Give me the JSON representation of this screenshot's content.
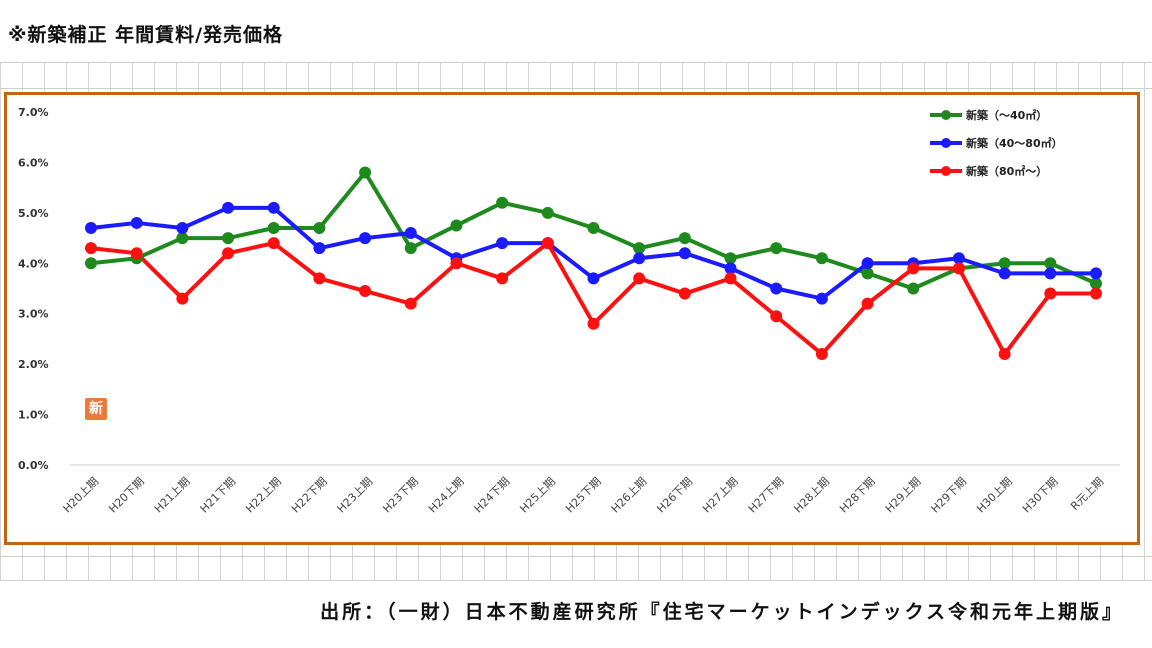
{
  "header": {
    "title": "※新築補正 年間賃料/発売価格"
  },
  "footer": {
    "source": "出所：（一財）日本不動産研究所『住宅マーケットインデックス令和元年上期版』"
  },
  "badge": {
    "text": "新"
  },
  "chart_data": {
    "type": "line",
    "categories": [
      "H20上期",
      "H20下期",
      "H21上期",
      "H21下期",
      "H22上期",
      "H22下期",
      "H23上期",
      "H23下期",
      "H24上期",
      "H24下期",
      "H25上期",
      "H25下期",
      "H26上期",
      "H26下期",
      "H27上期",
      "H27下期",
      "H28上期",
      "H28下期",
      "H29上期",
      "H29下期",
      "H30上期",
      "H30下期",
      "R元上期"
    ],
    "y_ticks": [
      "0.0%",
      "1.0%",
      "2.0%",
      "3.0%",
      "4.0%",
      "5.0%",
      "6.0%",
      "7.0%"
    ],
    "ylim": [
      0,
      7
    ],
    "grid": "horizontal-none",
    "legend_position": "top-right",
    "series": [
      {
        "name": "新築（～40㎡）",
        "color": "#1e8a1e",
        "values": [
          4.0,
          4.1,
          4.5,
          4.5,
          4.7,
          4.7,
          5.8,
          4.3,
          4.75,
          5.2,
          5.0,
          4.7,
          4.3,
          4.5,
          4.1,
          4.3,
          4.1,
          3.8,
          3.5,
          3.9,
          4.0,
          4.0,
          3.6
        ]
      },
      {
        "name": "新築（40～80㎡）",
        "color": "#1b1bff",
        "values": [
          4.7,
          4.8,
          4.7,
          5.1,
          5.1,
          4.3,
          4.5,
          4.6,
          4.1,
          4.4,
          4.4,
          3.7,
          4.1,
          4.2,
          3.9,
          3.5,
          3.3,
          4.0,
          4.0,
          4.1,
          3.8,
          3.8,
          3.8
        ]
      },
      {
        "name": "新築（80㎡～）",
        "color": "#ff1010",
        "values": [
          4.3,
          4.2,
          3.3,
          4.2,
          4.4,
          3.7,
          3.45,
          3.2,
          4.0,
          3.7,
          4.4,
          2.8,
          3.7,
          3.4,
          3.7,
          2.95,
          2.2,
          3.2,
          3.9,
          3.9,
          2.2,
          3.4,
          3.4
        ]
      }
    ]
  }
}
